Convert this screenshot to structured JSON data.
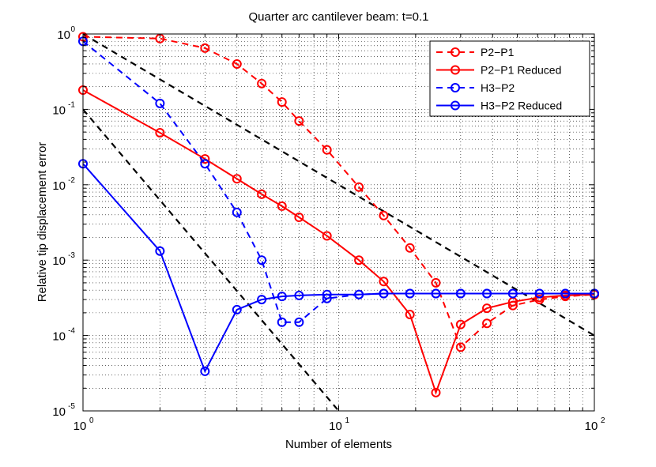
{
  "chart_data": {
    "type": "line",
    "title": "Quarter arc cantilever beam: t=0.1",
    "xlabel": "Number of elements",
    "ylabel": "Relative tip displacement error",
    "xscale": "log",
    "yscale": "log",
    "xlim": [
      1,
      100
    ],
    "ylim": [
      1e-05,
      1
    ],
    "grid": "major and minor (dotted)",
    "legend_position": "top-right",
    "x_ticks": [
      {
        "value": 1,
        "base": "10",
        "exp": "0"
      },
      {
        "value": 10,
        "base": "10",
        "exp": "1"
      },
      {
        "value": 100,
        "base": "10",
        "exp": "2"
      }
    ],
    "y_ticks": [
      {
        "value": 1,
        "base": "10",
        "exp": "0"
      },
      {
        "value": 0.1,
        "base": "10",
        "exp": "-1"
      },
      {
        "value": 0.01,
        "base": "10",
        "exp": "-2"
      },
      {
        "value": 0.001,
        "base": "10",
        "exp": "-3"
      },
      {
        "value": 0.0001,
        "base": "10",
        "exp": "-4"
      },
      {
        "value": 1e-05,
        "base": "10",
        "exp": "-5"
      }
    ],
    "series": [
      {
        "name": "P2−P1",
        "color": "#ff0000",
        "line": "dashed",
        "marker": "circle",
        "x": [
          1,
          2,
          3,
          4,
          5,
          6,
          7,
          9,
          12,
          15,
          19,
          24,
          30,
          38,
          48,
          61,
          77,
          100
        ],
        "y": [
          0.92,
          0.87,
          0.65,
          0.4,
          0.22,
          0.125,
          0.07,
          0.029,
          0.0093,
          0.0039,
          0.00145,
          0.0005,
          7e-05,
          0.000145,
          0.00025,
          0.0003,
          0.00033,
          0.00035
        ]
      },
      {
        "name": "P2−P1 Reduced",
        "color": "#ff0000",
        "line": "solid",
        "marker": "circle",
        "x": [
          1,
          2,
          3,
          4,
          5,
          6,
          7,
          9,
          12,
          15,
          19,
          24,
          30,
          38,
          48,
          61,
          77,
          100
        ],
        "y": [
          0.18,
          0.049,
          0.022,
          0.012,
          0.0075,
          0.0052,
          0.0037,
          0.0021,
          0.001,
          0.00052,
          0.00019,
          1.75e-05,
          0.00014,
          0.00023,
          0.00028,
          0.00032,
          0.00034,
          0.00035
        ]
      },
      {
        "name": "H3−P2",
        "color": "#0000ff",
        "line": "dashed",
        "marker": "circle",
        "x": [
          1,
          2,
          3,
          4,
          5,
          6,
          7,
          9,
          12,
          15,
          19,
          24,
          30,
          38,
          48,
          61,
          77,
          100
        ],
        "y": [
          0.8,
          0.12,
          0.019,
          0.0043,
          0.001,
          0.00015,
          0.00015,
          0.00031,
          0.00035,
          0.00036,
          0.00036,
          0.00036,
          0.00036,
          0.00036,
          0.00036,
          0.00036,
          0.00036,
          0.00036
        ]
      },
      {
        "name": "H3−P2 Reduced",
        "color": "#0000ff",
        "line": "solid",
        "marker": "circle",
        "x": [
          1,
          2,
          3,
          4,
          5,
          6,
          7,
          9,
          12,
          15,
          19,
          24,
          30,
          38,
          48,
          61,
          77,
          100
        ],
        "y": [
          0.019,
          0.00132,
          3.35e-05,
          0.00022,
          0.0003,
          0.00033,
          0.00034,
          0.00035,
          0.00035,
          0.00036,
          0.00036,
          0.00036,
          0.00036,
          0.00036,
          0.00036,
          0.00036,
          0.00036,
          0.00036
        ]
      }
    ],
    "reference_lines": [
      {
        "color": "#000000",
        "line": "dashed",
        "x": [
          1,
          100
        ],
        "y": [
          1,
          0.0001
        ]
      },
      {
        "color": "#000000",
        "line": "dashed",
        "x": [
          1,
          10
        ],
        "y": [
          0.1,
          1e-05
        ]
      }
    ]
  }
}
